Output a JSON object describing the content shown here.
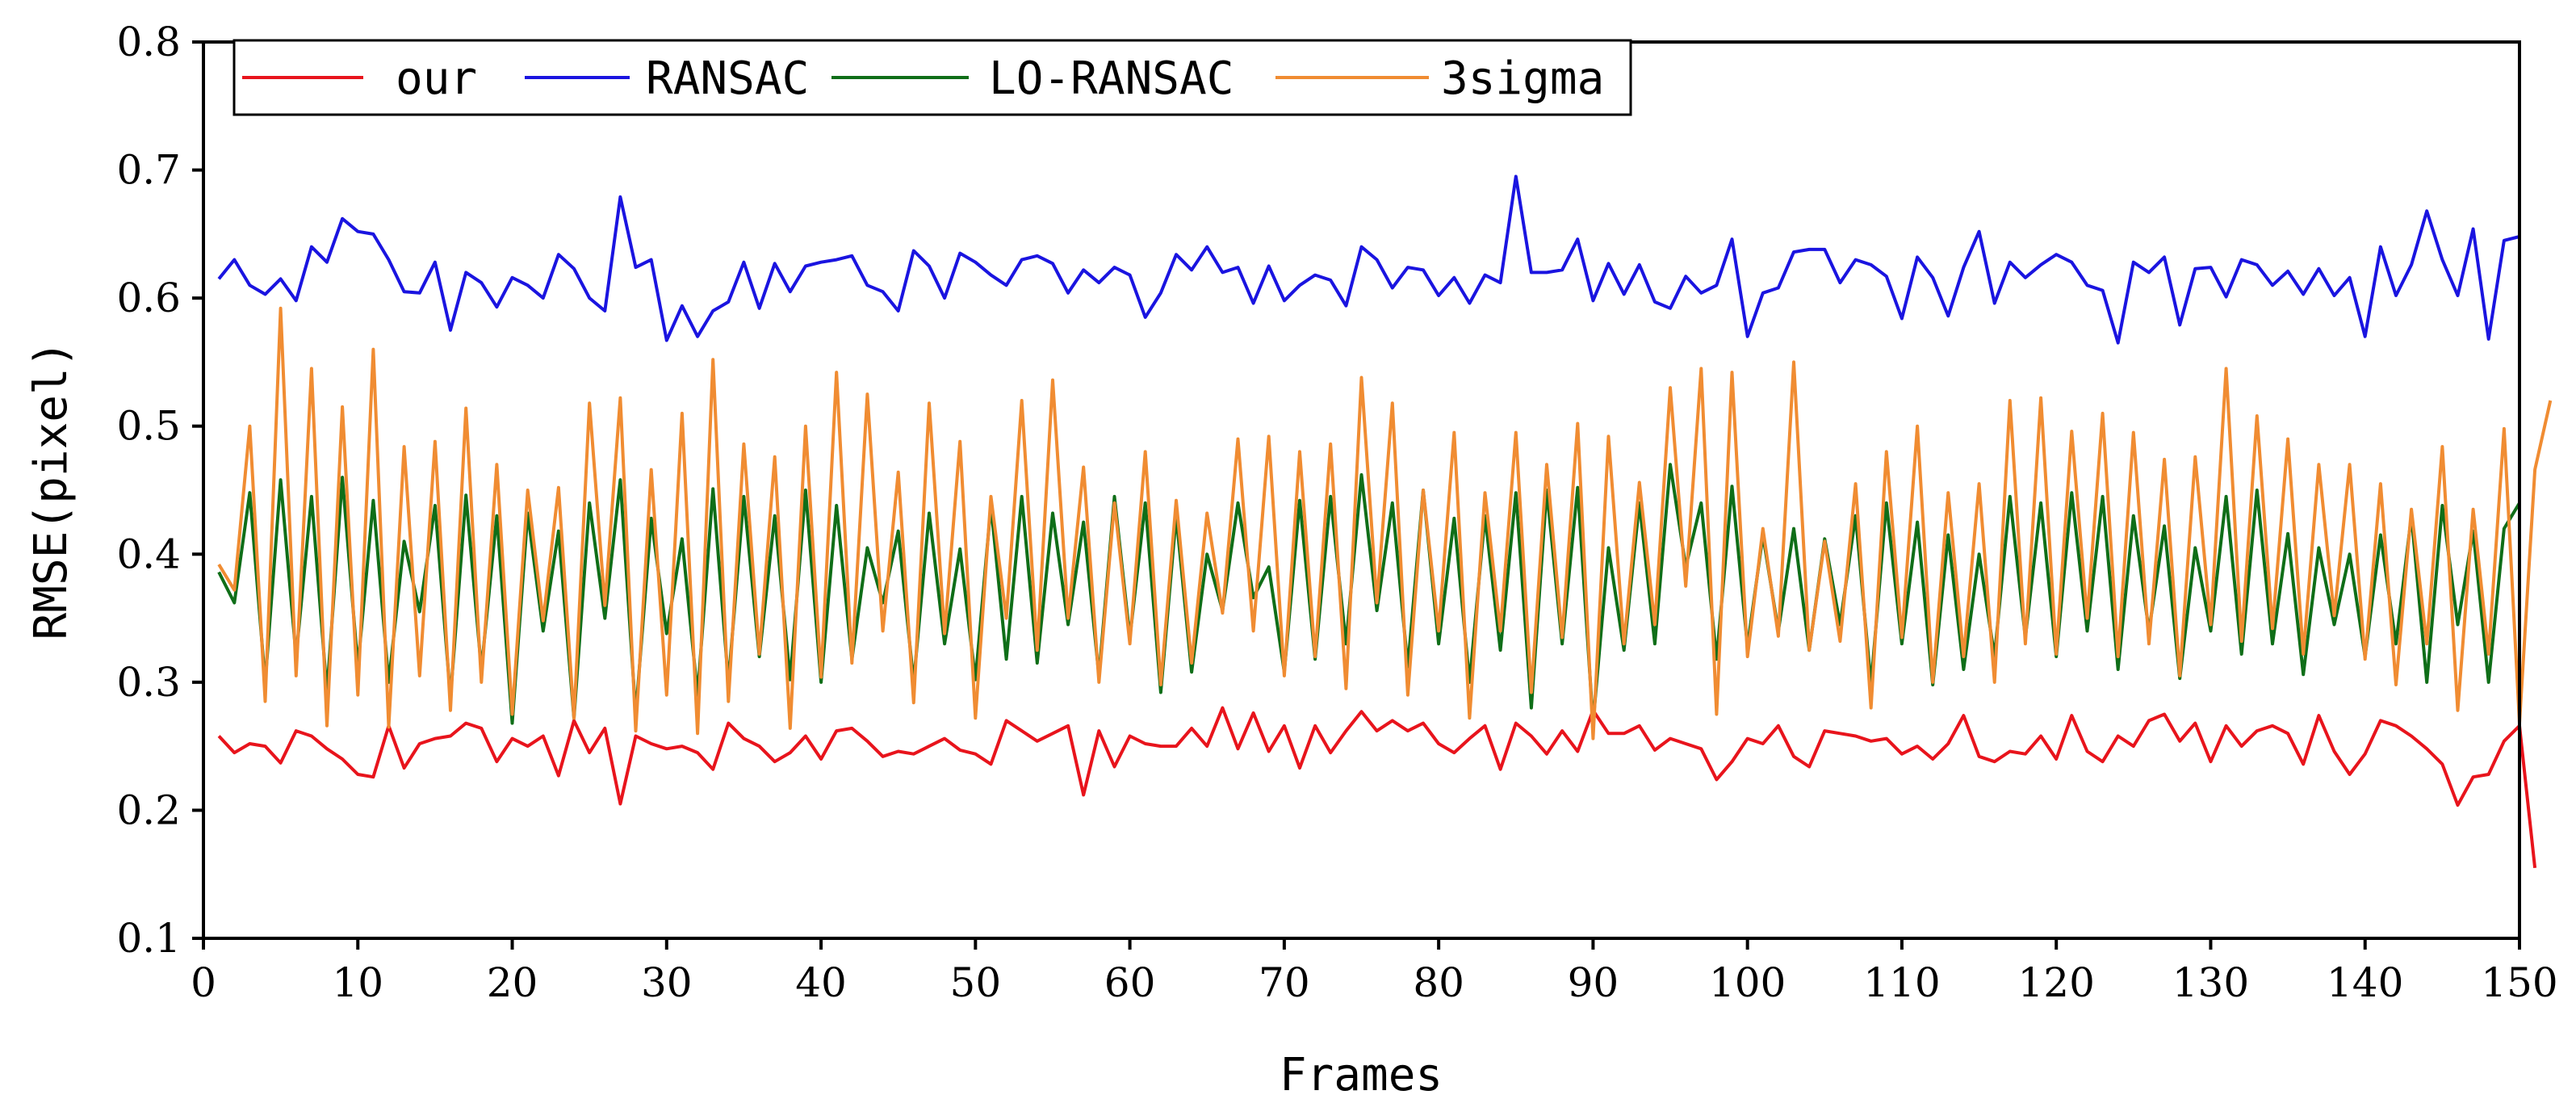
{
  "chart_data": {
    "type": "line",
    "title": "",
    "xlabel": "Frames",
    "ylabel": "RMSE(pixel)",
    "xlim": [
      0,
      150
    ],
    "ylim": [
      0.1,
      0.8
    ],
    "xticks": [
      0,
      10,
      20,
      30,
      40,
      50,
      60,
      70,
      80,
      90,
      100,
      110,
      120,
      130,
      140,
      150
    ],
    "yticks": [
      0.1,
      0.2,
      0.3,
      0.4,
      0.5,
      0.6,
      0.7,
      0.8
    ],
    "xtick_labels": [
      "0",
      "10",
      "20",
      "30",
      "40",
      "50",
      "60",
      "70",
      "80",
      "90",
      "100",
      "110",
      "120",
      "130",
      "140",
      "150"
    ],
    "ytick_labels": [
      "0.1",
      "0.2",
      "0.3",
      "0.4",
      "0.5",
      "0.6",
      "0.7",
      "0.8"
    ],
    "grid": false,
    "legend_position": "top-left",
    "x_start": 1,
    "series": [
      {
        "name": "our",
        "color": "#e8141c",
        "values": [
          0.258,
          0.245,
          0.252,
          0.25,
          0.237,
          0.262,
          0.258,
          0.248,
          0.24,
          0.228,
          0.226,
          0.266,
          0.233,
          0.252,
          0.256,
          0.258,
          0.268,
          0.264,
          0.238,
          0.256,
          0.25,
          0.258,
          0.227,
          0.27,
          0.245,
          0.264,
          0.205,
          0.258,
          0.252,
          0.248,
          0.25,
          0.245,
          0.232,
          0.268,
          0.256,
          0.25,
          0.238,
          0.245,
          0.258,
          0.24,
          0.262,
          0.264,
          0.254,
          0.242,
          0.246,
          0.244,
          0.25,
          0.256,
          0.247,
          0.244,
          0.236,
          0.27,
          0.262,
          0.254,
          0.26,
          0.266,
          0.212,
          0.262,
          0.234,
          0.258,
          0.252,
          0.25,
          0.25,
          0.264,
          0.25,
          0.28,
          0.248,
          0.276,
          0.246,
          0.266,
          0.233,
          0.266,
          0.245,
          0.262,
          0.277,
          0.262,
          0.27,
          0.262,
          0.268,
          0.252,
          0.245,
          0.256,
          0.266,
          0.232,
          0.268,
          0.258,
          0.244,
          0.262,
          0.246,
          0.278,
          0.26,
          0.26,
          0.266,
          0.247,
          0.256,
          0.252,
          0.248,
          0.224,
          0.238,
          0.256,
          0.252,
          0.266,
          0.242,
          0.234,
          0.262,
          0.26,
          0.258,
          0.254,
          0.256,
          0.244,
          0.25,
          0.24,
          0.252,
          0.274,
          0.242,
          0.238,
          0.246,
          0.244,
          0.258,
          0.24,
          0.274,
          0.246,
          0.238,
          0.258,
          0.25,
          0.27,
          0.275,
          0.254,
          0.268,
          0.238,
          0.266,
          0.25,
          0.262,
          0.266,
          0.26,
          0.236,
          0.274,
          0.246,
          0.228,
          0.244,
          0.27,
          0.266,
          0.258,
          0.248,
          0.236,
          0.204,
          0.226,
          0.228,
          0.254,
          0.266,
          0.155
        ]
      },
      {
        "name": "RANSAC",
        "color": "#1a14e0",
        "values": [
          0.615,
          0.63,
          0.61,
          0.603,
          0.615,
          0.598,
          0.64,
          0.628,
          0.662,
          0.652,
          0.65,
          0.63,
          0.605,
          0.604,
          0.628,
          0.575,
          0.62,
          0.612,
          0.593,
          0.616,
          0.61,
          0.6,
          0.634,
          0.623,
          0.6,
          0.59,
          0.679,
          0.624,
          0.63,
          0.567,
          0.594,
          0.57,
          0.59,
          0.597,
          0.628,
          0.592,
          0.627,
          0.605,
          0.625,
          0.628,
          0.63,
          0.633,
          0.61,
          0.605,
          0.59,
          0.637,
          0.625,
          0.6,
          0.635,
          0.628,
          0.618,
          0.61,
          0.63,
          0.633,
          0.627,
          0.604,
          0.622,
          0.612,
          0.624,
          0.618,
          0.585,
          0.604,
          0.634,
          0.622,
          0.64,
          0.62,
          0.624,
          0.596,
          0.625,
          0.598,
          0.61,
          0.618,
          0.614,
          0.594,
          0.64,
          0.63,
          0.608,
          0.624,
          0.622,
          0.602,
          0.616,
          0.596,
          0.618,
          0.612,
          0.695,
          0.62,
          0.62,
          0.622,
          0.646,
          0.598,
          0.627,
          0.603,
          0.626,
          0.597,
          0.592,
          0.617,
          0.604,
          0.61,
          0.646,
          0.57,
          0.604,
          0.608,
          0.636,
          0.638,
          0.638,
          0.612,
          0.63,
          0.626,
          0.617,
          0.584,
          0.632,
          0.616,
          0.586,
          0.624,
          0.652,
          0.596,
          0.628,
          0.616,
          0.626,
          0.634,
          0.628,
          0.61,
          0.606,
          0.565,
          0.628,
          0.62,
          0.632,
          0.579,
          0.623,
          0.624,
          0.601,
          0.63,
          0.626,
          0.61,
          0.621,
          0.603,
          0.623,
          0.602,
          0.616,
          0.57,
          0.64,
          0.602,
          0.626,
          0.668,
          0.63,
          0.602,
          0.654,
          0.568,
          0.645,
          0.648
        ]
      },
      {
        "name": "LO-RANSAC",
        "color": "#0f6e18",
        "values": [
          0.386,
          0.362,
          0.448,
          0.3,
          0.458,
          0.32,
          0.445,
          0.292,
          0.46,
          0.312,
          0.442,
          0.3,
          0.41,
          0.355,
          0.438,
          0.288,
          0.446,
          0.31,
          0.43,
          0.268,
          0.432,
          0.34,
          0.418,
          0.272,
          0.44,
          0.35,
          0.458,
          0.275,
          0.428,
          0.338,
          0.412,
          0.29,
          0.451,
          0.3,
          0.445,
          0.32,
          0.43,
          0.302,
          0.45,
          0.3,
          0.438,
          0.318,
          0.405,
          0.362,
          0.418,
          0.3,
          0.432,
          0.33,
          0.404,
          0.302,
          0.438,
          0.318,
          0.445,
          0.315,
          0.432,
          0.345,
          0.425,
          0.305,
          0.445,
          0.335,
          0.44,
          0.292,
          0.43,
          0.308,
          0.4,
          0.356,
          0.44,
          0.366,
          0.39,
          0.308,
          0.442,
          0.318,
          0.445,
          0.33,
          0.462,
          0.356,
          0.44,
          0.312,
          0.45,
          0.33,
          0.428,
          0.3,
          0.43,
          0.325,
          0.448,
          0.28,
          0.45,
          0.33,
          0.452,
          0.268,
          0.405,
          0.325,
          0.44,
          0.33,
          0.47,
          0.39,
          0.44,
          0.318,
          0.453,
          0.328,
          0.415,
          0.34,
          0.42,
          0.325,
          0.412,
          0.345,
          0.43,
          0.298,
          0.44,
          0.33,
          0.425,
          0.298,
          0.415,
          0.31,
          0.4,
          0.32,
          0.445,
          0.335,
          0.44,
          0.32,
          0.448,
          0.34,
          0.445,
          0.31,
          0.43,
          0.34,
          0.422,
          0.303,
          0.405,
          0.34,
          0.445,
          0.322,
          0.45,
          0.33,
          0.416,
          0.306,
          0.405,
          0.345,
          0.4,
          0.32,
          0.415,
          0.33,
          0.43,
          0.3,
          0.438,
          0.345,
          0.418,
          0.3,
          0.42,
          0.44
        ]
      },
      {
        "name": "3sigma",
        "color": "#f08c32",
        "values": [
          0.392,
          0.372,
          0.5,
          0.285,
          0.592,
          0.305,
          0.545,
          0.266,
          0.515,
          0.29,
          0.56,
          0.265,
          0.484,
          0.305,
          0.488,
          0.278,
          0.514,
          0.3,
          0.47,
          0.275,
          0.45,
          0.348,
          0.452,
          0.272,
          0.518,
          0.36,
          0.522,
          0.262,
          0.466,
          0.29,
          0.51,
          0.26,
          0.552,
          0.285,
          0.486,
          0.322,
          0.476,
          0.264,
          0.5,
          0.304,
          0.542,
          0.315,
          0.525,
          0.34,
          0.464,
          0.284,
          0.518,
          0.338,
          0.488,
          0.272,
          0.445,
          0.35,
          0.52,
          0.325,
          0.536,
          0.35,
          0.468,
          0.3,
          0.44,
          0.33,
          0.48,
          0.298,
          0.442,
          0.315,
          0.432,
          0.354,
          0.49,
          0.34,
          0.492,
          0.305,
          0.48,
          0.32,
          0.486,
          0.295,
          0.538,
          0.362,
          0.518,
          0.29,
          0.45,
          0.34,
          0.495,
          0.272,
          0.448,
          0.34,
          0.495,
          0.292,
          0.47,
          0.335,
          0.502,
          0.256,
          0.492,
          0.33,
          0.456,
          0.345,
          0.53,
          0.375,
          0.545,
          0.275,
          0.542,
          0.32,
          0.42,
          0.336,
          0.55,
          0.325,
          0.41,
          0.332,
          0.455,
          0.28,
          0.48,
          0.335,
          0.5,
          0.3,
          0.448,
          0.32,
          0.455,
          0.3,
          0.52,
          0.33,
          0.522,
          0.322,
          0.496,
          0.35,
          0.51,
          0.32,
          0.495,
          0.33,
          0.474,
          0.305,
          0.476,
          0.345,
          0.545,
          0.332,
          0.508,
          0.342,
          0.49,
          0.322,
          0.47,
          0.352,
          0.47,
          0.318,
          0.455,
          0.298,
          0.435,
          0.33,
          0.484,
          0.278,
          0.435,
          0.322,
          0.498,
          0.268,
          0.466,
          0.52
        ]
      }
    ]
  }
}
